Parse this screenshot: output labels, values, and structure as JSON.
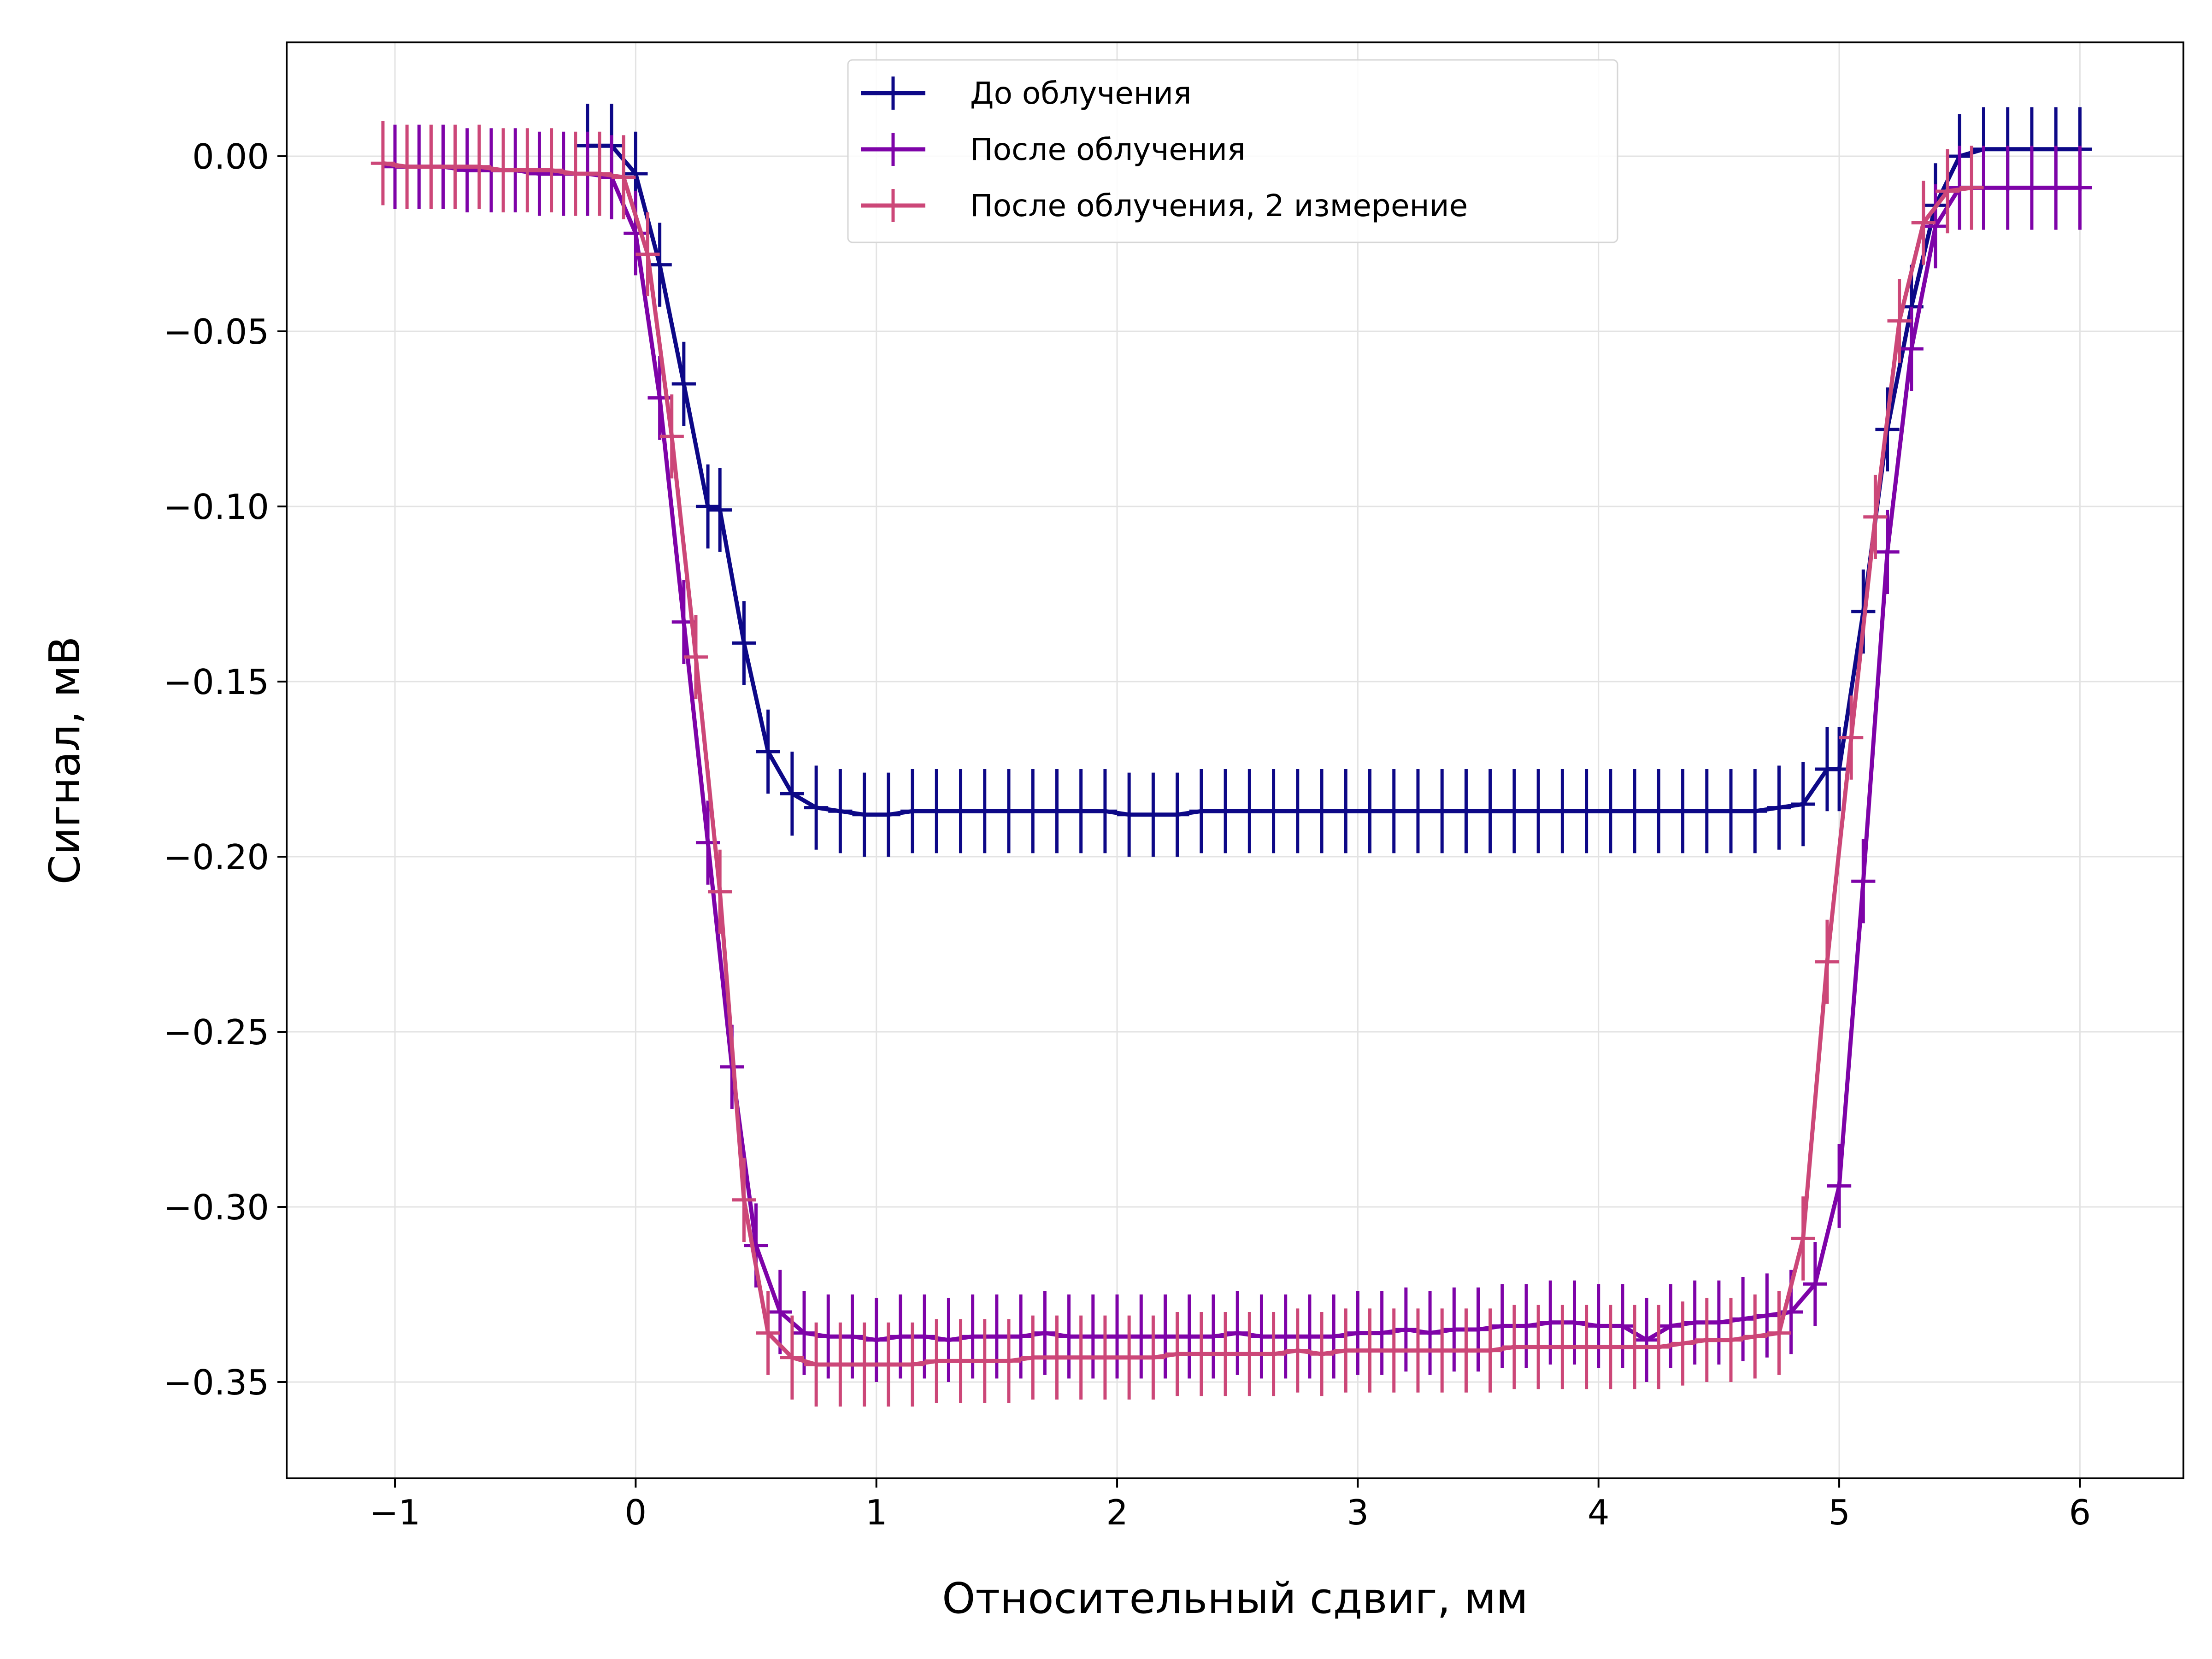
{
  "chart_data": {
    "type": "line",
    "xlabel": "Относительный сдвиг, мм",
    "ylabel": "Сигнал, мВ",
    "xlim": [
      -1.45,
      6.43
    ],
    "ylim": [
      -0.3775,
      0.0325
    ],
    "xticks": [
      -1,
      0,
      1,
      2,
      3,
      4,
      5,
      6
    ],
    "xtick_labels": [
      "−1",
      "0",
      "1",
      "2",
      "3",
      "4",
      "5",
      "6"
    ],
    "yticks": [
      0.0,
      -0.05,
      -0.1,
      -0.15,
      -0.2,
      -0.25,
      -0.3,
      -0.35
    ],
    "ytick_labels": [
      "0.00",
      "−0.05",
      "−0.10",
      "−0.15",
      "−0.20",
      "−0.25",
      "−0.30",
      "−0.35"
    ],
    "grid": true,
    "legend_position": "top-center",
    "error_bars": "x and y",
    "series": [
      {
        "name": "До облучения",
        "color": "#0d0887",
        "xerr": 0.1,
        "x": [
          -0.2,
          -0.1,
          0.0,
          0.1,
          0.2,
          0.3,
          0.35,
          0.45,
          0.55,
          0.65,
          0.75,
          0.85,
          0.95,
          1.05,
          1.15,
          1.25,
          1.35,
          1.45,
          1.55,
          1.65,
          1.75,
          1.85,
          1.95,
          2.05,
          2.15,
          2.25,
          2.35,
          2.45,
          2.55,
          2.65,
          2.75,
          2.85,
          2.95,
          3.05,
          3.15,
          3.25,
          3.35,
          3.45,
          3.55,
          3.65,
          3.75,
          3.85,
          3.95,
          4.05,
          4.15,
          4.25,
          4.35,
          4.45,
          4.55,
          4.65,
          4.75,
          4.85,
          4.95,
          5.0,
          5.1,
          5.2,
          5.3,
          5.4,
          5.5,
          5.6,
          5.7,
          5.8,
          5.9,
          6.0
        ],
        "y": [
          0.003,
          0.003,
          -0.005,
          -0.031,
          -0.065,
          -0.1,
          -0.101,
          -0.139,
          -0.17,
          -0.182,
          -0.186,
          -0.187,
          -0.188,
          -0.188,
          -0.187,
          -0.187,
          -0.187,
          -0.187,
          -0.187,
          -0.187,
          -0.187,
          -0.187,
          -0.187,
          -0.188,
          -0.188,
          -0.188,
          -0.187,
          -0.187,
          -0.187,
          -0.187,
          -0.187,
          -0.187,
          -0.187,
          -0.187,
          -0.187,
          -0.187,
          -0.187,
          -0.187,
          -0.187,
          -0.187,
          -0.187,
          -0.187,
          -0.187,
          -0.187,
          -0.187,
          -0.187,
          -0.187,
          -0.187,
          -0.187,
          -0.187,
          -0.186,
          -0.185,
          -0.175,
          -0.175,
          -0.13,
          -0.078,
          -0.043,
          -0.014,
          0.0,
          0.002,
          0.002,
          0.002,
          0.002,
          0.002
        ],
        "yerr": [
          0.012,
          0.012,
          0.012,
          0.012,
          0.012,
          0.012,
          0.012,
          0.012,
          0.012,
          0.012,
          0.012,
          0.012,
          0.012,
          0.012,
          0.012,
          0.012,
          0.012,
          0.012,
          0.012,
          0.012,
          0.012,
          0.012,
          0.012,
          0.012,
          0.012,
          0.012,
          0.012,
          0.012,
          0.012,
          0.012,
          0.012,
          0.012,
          0.012,
          0.012,
          0.012,
          0.012,
          0.012,
          0.012,
          0.012,
          0.012,
          0.012,
          0.012,
          0.012,
          0.012,
          0.012,
          0.012,
          0.012,
          0.012,
          0.012,
          0.012,
          0.012,
          0.012,
          0.012,
          0.012,
          0.012,
          0.012,
          0.012,
          0.012,
          0.012,
          0.012,
          0.012,
          0.012,
          0.012,
          0.012
        ]
      },
      {
        "name": "После облучения",
        "color": "#7e03a8",
        "xerr": 0.1,
        "x": [
          -1.0,
          -0.9,
          -0.8,
          -0.7,
          -0.6,
          -0.5,
          -0.4,
          -0.3,
          -0.2,
          -0.1,
          0.0,
          0.1,
          0.2,
          0.3,
          0.4,
          0.5,
          0.6,
          0.7,
          0.8,
          0.9,
          1.0,
          1.1,
          1.2,
          1.3,
          1.4,
          1.5,
          1.6,
          1.7,
          1.8,
          1.9,
          2.0,
          2.1,
          2.2,
          2.3,
          2.4,
          2.5,
          2.6,
          2.7,
          2.8,
          2.9,
          3.0,
          3.1,
          3.2,
          3.3,
          3.4,
          3.5,
          3.6,
          3.7,
          3.8,
          3.9,
          4.0,
          4.1,
          4.2,
          4.3,
          4.4,
          4.5,
          4.6,
          4.7,
          4.8,
          4.9,
          5.0,
          5.1,
          5.2,
          5.3,
          5.4,
          5.5,
          5.6,
          5.7,
          5.8,
          5.9,
          6.0
        ],
        "y": [
          -0.003,
          -0.003,
          -0.003,
          -0.004,
          -0.004,
          -0.004,
          -0.005,
          -0.005,
          -0.005,
          -0.006,
          -0.022,
          -0.069,
          -0.133,
          -0.196,
          -0.26,
          -0.311,
          -0.33,
          -0.336,
          -0.337,
          -0.337,
          -0.338,
          -0.337,
          -0.337,
          -0.338,
          -0.337,
          -0.337,
          -0.337,
          -0.336,
          -0.337,
          -0.337,
          -0.337,
          -0.337,
          -0.337,
          -0.337,
          -0.337,
          -0.336,
          -0.337,
          -0.337,
          -0.337,
          -0.337,
          -0.336,
          -0.336,
          -0.335,
          -0.336,
          -0.335,
          -0.335,
          -0.334,
          -0.334,
          -0.333,
          -0.333,
          -0.334,
          -0.334,
          -0.338,
          -0.334,
          -0.333,
          -0.333,
          -0.332,
          -0.331,
          -0.33,
          -0.322,
          -0.294,
          -0.207,
          -0.113,
          -0.055,
          -0.02,
          -0.009,
          -0.009,
          -0.009,
          -0.009,
          -0.009,
          -0.009
        ],
        "yerr": [
          0.012,
          0.012,
          0.012,
          0.012,
          0.012,
          0.012,
          0.012,
          0.012,
          0.012,
          0.012,
          0.012,
          0.012,
          0.012,
          0.012,
          0.012,
          0.012,
          0.012,
          0.012,
          0.012,
          0.012,
          0.012,
          0.012,
          0.012,
          0.012,
          0.012,
          0.012,
          0.012,
          0.012,
          0.012,
          0.012,
          0.012,
          0.012,
          0.012,
          0.012,
          0.012,
          0.012,
          0.012,
          0.012,
          0.012,
          0.012,
          0.012,
          0.012,
          0.012,
          0.012,
          0.012,
          0.012,
          0.012,
          0.012,
          0.012,
          0.012,
          0.012,
          0.012,
          0.012,
          0.012,
          0.012,
          0.012,
          0.012,
          0.012,
          0.012,
          0.012,
          0.012,
          0.012,
          0.012,
          0.012,
          0.012,
          0.012,
          0.012,
          0.012,
          0.012,
          0.012,
          0.012
        ]
      },
      {
        "name": "После облучения, 2 измерение",
        "color": "#cc4778",
        "xerr": 0.1,
        "x": [
          -1.05,
          -0.95,
          -0.85,
          -0.75,
          -0.65,
          -0.55,
          -0.45,
          -0.35,
          -0.25,
          -0.15,
          -0.05,
          0.05,
          0.15,
          0.25,
          0.35,
          0.45,
          0.55,
          0.65,
          0.75,
          0.85,
          0.95,
          1.05,
          1.15,
          1.25,
          1.35,
          1.45,
          1.55,
          1.65,
          1.75,
          1.85,
          1.95,
          2.05,
          2.15,
          2.25,
          2.35,
          2.45,
          2.55,
          2.65,
          2.75,
          2.85,
          2.95,
          3.05,
          3.15,
          3.25,
          3.35,
          3.45,
          3.55,
          3.65,
          3.75,
          3.85,
          3.95,
          4.05,
          4.15,
          4.25,
          4.35,
          4.45,
          4.55,
          4.65,
          4.75,
          4.85,
          4.95,
          5.05,
          5.15,
          5.25,
          5.35,
          5.45,
          5.55
        ],
        "y": [
          -0.002,
          -0.003,
          -0.003,
          -0.003,
          -0.003,
          -0.004,
          -0.004,
          -0.004,
          -0.005,
          -0.005,
          -0.006,
          -0.028,
          -0.08,
          -0.143,
          -0.21,
          -0.298,
          -0.336,
          -0.343,
          -0.345,
          -0.345,
          -0.345,
          -0.345,
          -0.345,
          -0.344,
          -0.344,
          -0.344,
          -0.344,
          -0.343,
          -0.343,
          -0.343,
          -0.343,
          -0.343,
          -0.343,
          -0.342,
          -0.342,
          -0.342,
          -0.342,
          -0.342,
          -0.341,
          -0.342,
          -0.341,
          -0.341,
          -0.341,
          -0.341,
          -0.341,
          -0.341,
          -0.341,
          -0.34,
          -0.34,
          -0.34,
          -0.34,
          -0.34,
          -0.34,
          -0.34,
          -0.339,
          -0.338,
          -0.338,
          -0.337,
          -0.336,
          -0.309,
          -0.23,
          -0.166,
          -0.103,
          -0.047,
          -0.019,
          -0.01,
          -0.009
        ],
        "yerr": [
          0.012,
          0.012,
          0.012,
          0.012,
          0.012,
          0.012,
          0.012,
          0.012,
          0.012,
          0.012,
          0.012,
          0.012,
          0.012,
          0.012,
          0.012,
          0.012,
          0.012,
          0.012,
          0.012,
          0.012,
          0.012,
          0.012,
          0.012,
          0.012,
          0.012,
          0.012,
          0.012,
          0.012,
          0.012,
          0.012,
          0.012,
          0.012,
          0.012,
          0.012,
          0.012,
          0.012,
          0.012,
          0.012,
          0.012,
          0.012,
          0.012,
          0.012,
          0.012,
          0.012,
          0.012,
          0.012,
          0.012,
          0.012,
          0.012,
          0.012,
          0.012,
          0.012,
          0.012,
          0.012,
          0.012,
          0.012,
          0.012,
          0.012,
          0.012,
          0.012,
          0.012,
          0.012,
          0.012,
          0.012,
          0.012,
          0.012,
          0.012
        ]
      }
    ]
  }
}
